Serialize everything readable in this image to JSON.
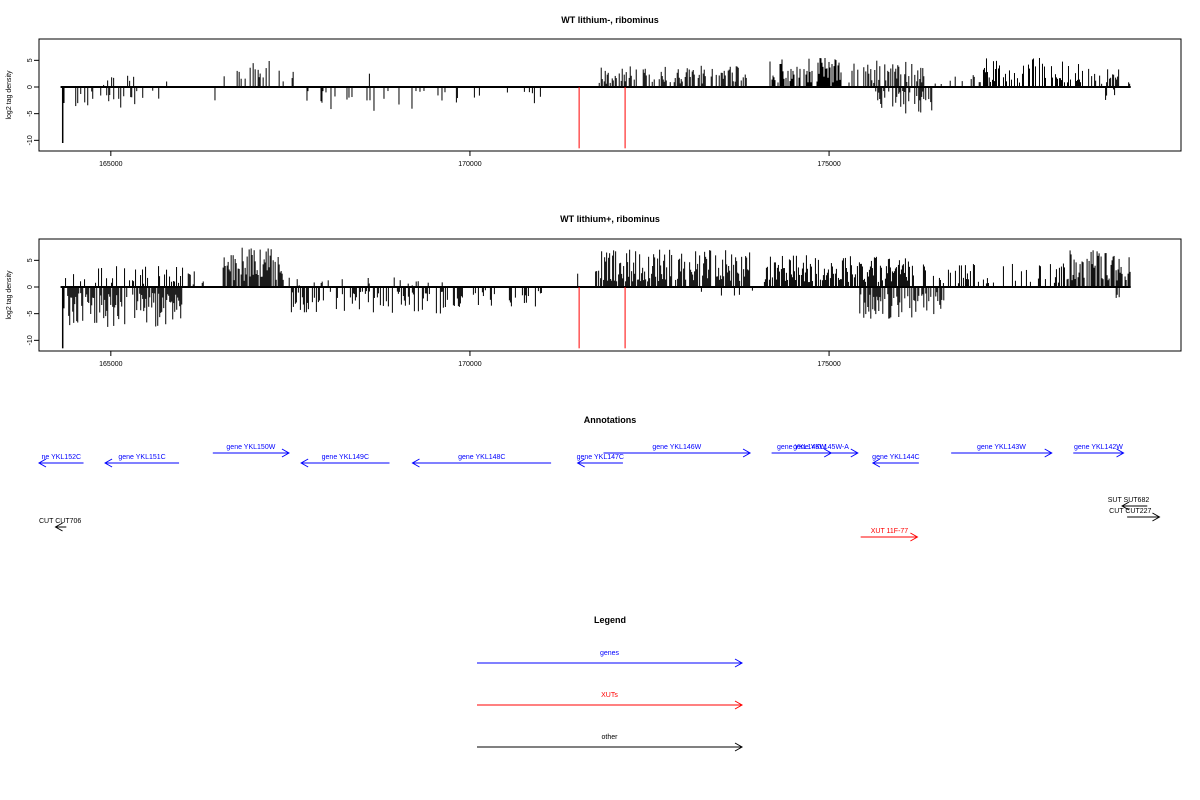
{
  "chart_data": [
    {
      "type": "bar",
      "title": "WT lithium-, ribominus",
      "ylabel": "log2 tag density",
      "xlim": [
        164000,
        179900
      ],
      "ylim": [
        -12,
        9
      ],
      "x_ticks": [
        165000,
        170000,
        175000
      ],
      "y_ticks": [
        -10,
        -5,
        0,
        5
      ],
      "x_tick_labels": [
        "165000",
        "170000",
        "175000"
      ],
      "y_tick_labels": [
        "-10",
        "-5",
        "0",
        "5"
      ],
      "baseline_range": [
        164300,
        179200
      ],
      "markers": {
        "x": [
          171520,
          172160
        ],
        "y_range": [
          -11.5,
          0
        ],
        "color": "#ff0000"
      },
      "positive_segments": [
        {
          "start": 164900,
          "end": 165800,
          "max": 2.5,
          "density": 0.12
        },
        {
          "start": 166550,
          "end": 167550,
          "max": 5,
          "density": 0.35
        },
        {
          "start": 168600,
          "end": 168600,
          "max": 2.5,
          "density": 1
        },
        {
          "start": 171800,
          "end": 173850,
          "max": 4,
          "density": 0.5
        },
        {
          "start": 174150,
          "end": 175350,
          "max": 5.5,
          "density": 0.7
        },
        {
          "start": 175400,
          "end": 176350,
          "max": 5,
          "density": 0.6
        },
        {
          "start": 176450,
          "end": 177250,
          "max": 3,
          "density": 0.25
        },
        {
          "start": 177150,
          "end": 178550,
          "max": 5.5,
          "density": 0.5
        },
        {
          "start": 178600,
          "end": 179200,
          "max": 3.5,
          "density": 0.4
        }
      ],
      "negative_segments": [
        {
          "start": 164400,
          "end": 165800,
          "max": 4,
          "density": 0.12
        },
        {
          "start": 166450,
          "end": 166450,
          "max": 2.5,
          "density": 1
        },
        {
          "start": 167550,
          "end": 169700,
          "max": 4.5,
          "density": 0.18
        },
        {
          "start": 169700,
          "end": 171100,
          "max": 3.5,
          "density": 0.12
        },
        {
          "start": 175650,
          "end": 176450,
          "max": 5,
          "density": 0.6
        },
        {
          "start": 178850,
          "end": 179000,
          "max": 2.5,
          "density": 0.3
        }
      ],
      "spikes": [
        {
          "x": 164330,
          "y": -10.5
        },
        {
          "x": 164345,
          "y": -3
        }
      ]
    },
    {
      "type": "bar",
      "title": "WT lithium+, ribominus",
      "ylabel": "log2 tag density",
      "xlim": [
        164000,
        179900
      ],
      "ylim": [
        -12,
        9
      ],
      "x_ticks": [
        165000,
        170000,
        175000
      ],
      "y_ticks": [
        -10,
        -5,
        0,
        5
      ],
      "x_tick_labels": [
        "165000",
        "170000",
        "175000"
      ],
      "y_tick_labels": [
        "-10",
        "-5",
        "0",
        "5"
      ],
      "baseline_range": [
        164300,
        179200
      ],
      "markers": {
        "x": [
          171520,
          172160
        ],
        "y_range": [
          -11.5,
          0
        ],
        "color": "#ff0000"
      },
      "positive_segments": [
        {
          "start": 164300,
          "end": 166000,
          "max": 4,
          "density": 0.3
        },
        {
          "start": 166050,
          "end": 166400,
          "max": 3,
          "density": 0.3
        },
        {
          "start": 166550,
          "end": 167400,
          "max": 7.5,
          "density": 0.85
        },
        {
          "start": 167400,
          "end": 169700,
          "max": 2,
          "density": 0.08
        },
        {
          "start": 171500,
          "end": 171500,
          "max": 2.5,
          "density": 1
        },
        {
          "start": 171750,
          "end": 173900,
          "max": 7,
          "density": 0.8
        },
        {
          "start": 174100,
          "end": 176200,
          "max": 6,
          "density": 0.8
        },
        {
          "start": 176300,
          "end": 178300,
          "max": 4.5,
          "density": 0.35
        },
        {
          "start": 178300,
          "end": 179200,
          "max": 7,
          "density": 0.85
        }
      ],
      "negative_segments": [
        {
          "start": 164400,
          "end": 166000,
          "max": 7.5,
          "density": 0.8
        },
        {
          "start": 167500,
          "end": 169700,
          "max": 5,
          "density": 0.45
        },
        {
          "start": 169700,
          "end": 171000,
          "max": 4,
          "density": 0.35
        },
        {
          "start": 173000,
          "end": 174000,
          "max": 2,
          "density": 0.1
        },
        {
          "start": 175400,
          "end": 176600,
          "max": 6,
          "density": 0.7
        },
        {
          "start": 178900,
          "end": 179050,
          "max": 3,
          "density": 0.3
        }
      ],
      "spikes": [
        {
          "x": 164330,
          "y": -11.5
        },
        {
          "x": 164345,
          "y": -4
        }
      ]
    }
  ],
  "annotations": {
    "title": "Annotations",
    "items": [
      {
        "label": "ne YKL152C",
        "x1": 164000,
        "x2": 164620,
        "row": 1,
        "dir": "left",
        "type": "gene"
      },
      {
        "label": "gene YKL151C",
        "x1": 164920,
        "x2": 165950,
        "row": 1,
        "dir": "left",
        "type": "gene"
      },
      {
        "label": "gene YKL150W",
        "x1": 166420,
        "x2": 167480,
        "row": 0,
        "dir": "right",
        "type": "gene"
      },
      {
        "label": "gene YKL149C",
        "x1": 167650,
        "x2": 168880,
        "row": 1,
        "dir": "left",
        "type": "gene"
      },
      {
        "label": "gene YKL148C",
        "x1": 169200,
        "x2": 171130,
        "row": 1,
        "dir": "left",
        "type": "gene"
      },
      {
        "label": "gene YKL147C",
        "x1": 171500,
        "x2": 172130,
        "row": 1,
        "dir": "left",
        "type": "gene"
      },
      {
        "label": "gene YKL146W",
        "x1": 171860,
        "x2": 173900,
        "row": 0,
        "dir": "right",
        "type": "gene"
      },
      {
        "label": "gene YKL145W",
        "x1": 174200,
        "x2": 175030,
        "row": 0,
        "dir": "right",
        "type": "gene"
      },
      {
        "label": "gene YKL145W-A",
        "x1": 174950,
        "x2": 175400,
        "row": 0,
        "dir": "right",
        "type": "gene",
        "label_x": 174500
      },
      {
        "label": "gene YKL144C",
        "x1": 175610,
        "x2": 176250,
        "row": 1,
        "dir": "left",
        "type": "gene"
      },
      {
        "label": "gene YKL143W",
        "x1": 176700,
        "x2": 178100,
        "row": 0,
        "dir": "right",
        "type": "gene"
      },
      {
        "label": "gene YKL142W",
        "x1": 178400,
        "x2": 179100,
        "row": 0,
        "dir": "right",
        "type": "gene"
      },
      {
        "label": "CUT CUT706",
        "x1": 164230,
        "x2": 164380,
        "row": 2,
        "dir": "left",
        "type": "other",
        "label_x": 164000
      },
      {
        "label": "SUT SUT682",
        "x1": 179080,
        "x2": 179430,
        "row": 3,
        "dir": "left",
        "type": "other",
        "label_x": 178880
      },
      {
        "label": "CUT CUT227",
        "x1": 179150,
        "x2": 179600,
        "row": 4,
        "dir": "right",
        "type": "other",
        "label_x": 178900
      },
      {
        "label": "XUT 11F-77",
        "x1": 175440,
        "x2": 176230,
        "row": 5,
        "dir": "right",
        "type": "xut",
        "label_x": 175580
      }
    ]
  },
  "legend": {
    "title": "Legend",
    "items": [
      {
        "label": "genes",
        "color": "#0000ff"
      },
      {
        "label": "XUTs",
        "color": "#ff0000"
      },
      {
        "label": "other",
        "color": "#000000"
      }
    ]
  },
  "colors": {
    "gene": "#0000ff",
    "xut": "#ff0000",
    "other": "#000000",
    "marker": "#ff0000"
  }
}
